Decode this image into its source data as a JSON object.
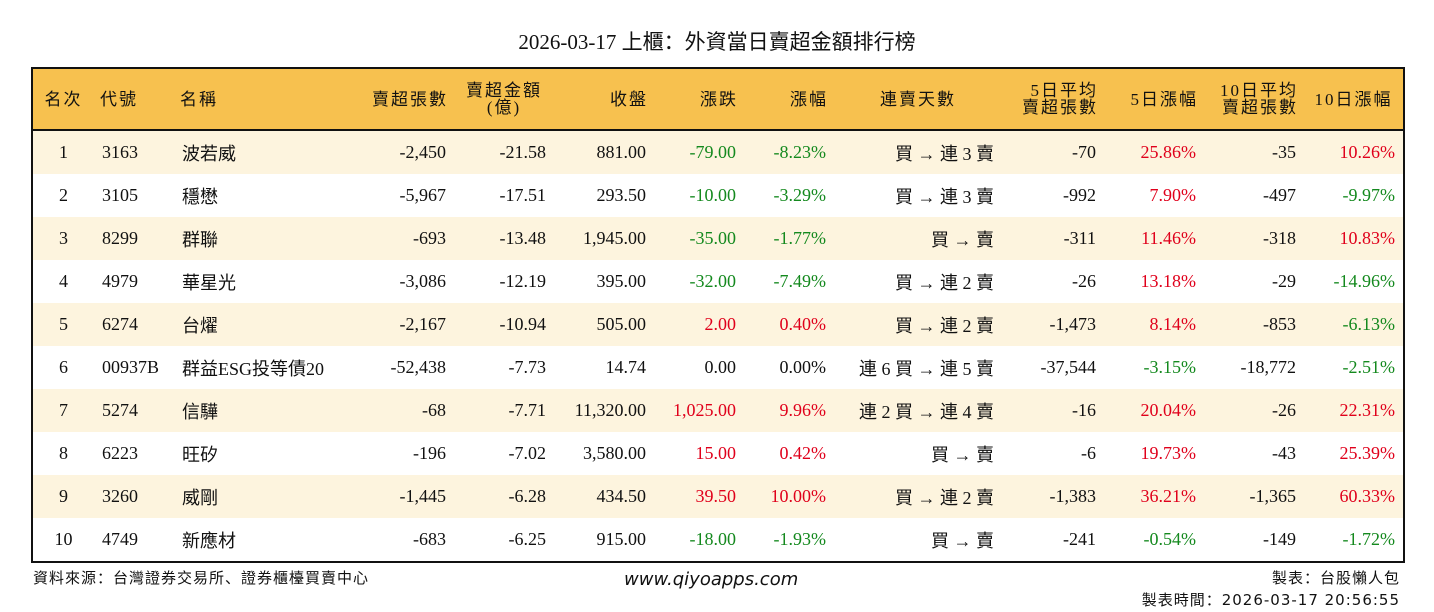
{
  "title": "2026-03-17 上櫃：外資當日賣超金額排行榜",
  "headers": [
    "名次",
    "代號",
    "名稱",
    "賣超張數",
    "賣超金額\n(億)",
    "收盤",
    "漲跌",
    "漲幅",
    "連賣天數",
    "5日平均\n賣超張數",
    "5日漲幅",
    "10日平均\n賣超張數",
    "10日漲幅"
  ],
  "rows": [
    [
      "1",
      "3163",
      "波若威",
      "-2,450",
      "-21.58",
      "881.00",
      "-79.00",
      "-8.23%",
      "買 → 連 3 賣",
      "-70",
      "25.86%",
      "-35",
      "10.26%"
    ],
    [
      "2",
      "3105",
      "穩懋",
      "-5,967",
      "-17.51",
      "293.50",
      "-10.00",
      "-3.29%",
      "買 → 連 3 賣",
      "-992",
      "7.90%",
      "-497",
      "-9.97%"
    ],
    [
      "3",
      "8299",
      "群聯",
      "-693",
      "-13.48",
      "1,945.00",
      "-35.00",
      "-1.77%",
      "買 → 賣",
      "-311",
      "11.46%",
      "-318",
      "10.83%"
    ],
    [
      "4",
      "4979",
      "華星光",
      "-3,086",
      "-12.19",
      "395.00",
      "-32.00",
      "-7.49%",
      "買 → 連 2 賣",
      "-26",
      "13.18%",
      "-29",
      "-14.96%"
    ],
    [
      "5",
      "6274",
      "台燿",
      "-2,167",
      "-10.94",
      "505.00",
      "2.00",
      "0.40%",
      "買 → 連 2 賣",
      "-1,473",
      "8.14%",
      "-853",
      "-6.13%"
    ],
    [
      "6",
      "00937B",
      "群益ESG投等債20",
      "-52,438",
      "-7.73",
      "14.74",
      "0.00",
      "0.00%",
      "連 6 買 → 連 5 賣",
      "-37,544",
      "-3.15%",
      "-18,772",
      "-2.51%"
    ],
    [
      "7",
      "5274",
      "信驊",
      "-68",
      "-7.71",
      "11,320.00",
      "1,025.00",
      "9.96%",
      "連 2 買 → 連 4 賣",
      "-16",
      "20.04%",
      "-26",
      "22.31%"
    ],
    [
      "8",
      "6223",
      "旺矽",
      "-196",
      "-7.02",
      "3,580.00",
      "15.00",
      "0.42%",
      "買 → 賣",
      "-6",
      "19.73%",
      "-43",
      "25.39%"
    ],
    [
      "9",
      "3260",
      "威剛",
      "-1,445",
      "-6.28",
      "434.50",
      "39.50",
      "10.00%",
      "買 → 連 2 賣",
      "-1,383",
      "36.21%",
      "-1,365",
      "60.33%"
    ],
    [
      "10",
      "4749",
      "新應材",
      "-683",
      "-6.25",
      "915.00",
      "-18.00",
      "-1.93%",
      "買 → 賣",
      "-241",
      "-0.54%",
      "-149",
      "-1.72%"
    ]
  ],
  "footer": {
    "source": "資料來源：台灣證券交易所、證券櫃檯買賣中心",
    "url": "www.qiyoapps.com",
    "author": "製表：台股懶人包",
    "time": "製表時間：2026-03-17 20:56:55"
  },
  "colors": {
    "header": "#f7c14f",
    "up": "#e0001b",
    "down": "#14891e",
    "stripe": "#fdf4de"
  }
}
